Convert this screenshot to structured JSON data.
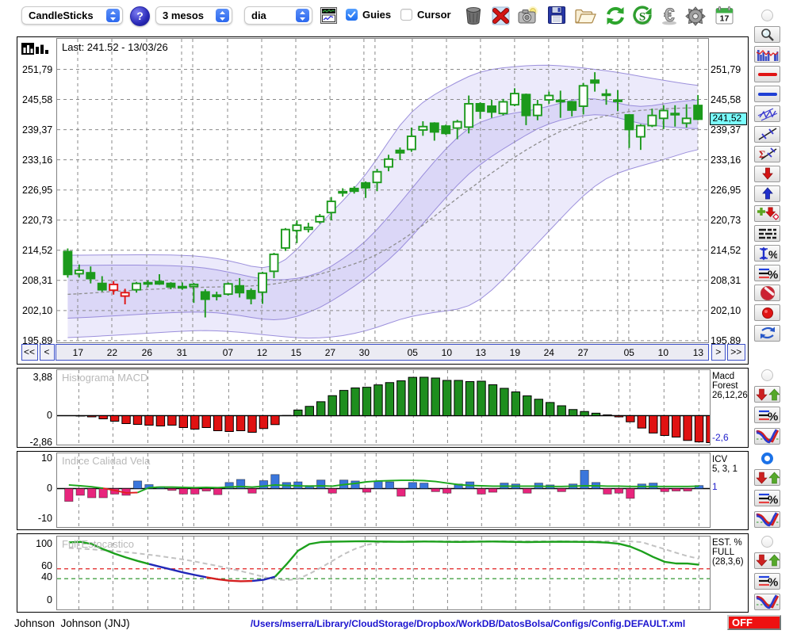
{
  "toolbar": {
    "chart_type_dropdown": {
      "value": "CandleSticks"
    },
    "help_button_label": "?",
    "period_dropdown": {
      "value": "3 mesos"
    },
    "interval_dropdown": {
      "value": "dia"
    },
    "chart_window_icon": "chart-window",
    "guies_checkbox": {
      "label": "Guies",
      "checked": true
    },
    "cursor_checkbox": {
      "label": "Cursor",
      "checked": false
    },
    "action_icons": [
      {
        "name": "trash"
      },
      {
        "name": "delete-cross"
      },
      {
        "name": "camera"
      },
      {
        "name": "save-floppy"
      },
      {
        "name": "open-folder"
      },
      {
        "name": "refresh-arrows"
      },
      {
        "name": "sync-s"
      },
      {
        "name": "euro"
      },
      {
        "name": "gear"
      },
      {
        "name": "calendar",
        "day": "17"
      }
    ]
  },
  "main_chart": {
    "corner_icon": "histogram",
    "last_label": "Last: 241.52 - 13/03/26",
    "price_labels": [
      "251,79",
      "245,58",
      "239,37",
      "233,16",
      "226,95",
      "220,73",
      "214,52",
      "208,31",
      "202,10",
      "195,89"
    ],
    "current_price_tag": "241,52",
    "radio_selected": false,
    "sidebar_icons": [
      "zoom-magnifier",
      "volume-profile",
      "red-hline",
      "blue-hline",
      "channel-zigzag",
      "trendline-marks",
      "sigma-line",
      "arrow-down-red",
      "arrow-up-blue",
      "plus-arrow-diamond",
      "lines-list",
      "vertical-percent",
      "lines-percent",
      "no-entry",
      "record-dot",
      "swap-arrows"
    ],
    "nav": {
      "first": "<<",
      "prev": "<",
      "next": ">",
      "last": ">>",
      "dates": [
        "17",
        "22",
        "26",
        "31",
        "07",
        "12",
        "15",
        "27",
        "30",
        "05",
        "10",
        "13",
        "19",
        "24",
        "27",
        "05",
        "10",
        "13"
      ]
    }
  },
  "panels": [
    {
      "id": "macd",
      "title": "Histograma MACD",
      "y_labels": [
        "3,88",
        "0",
        "-2,86"
      ],
      "right_lines": [
        "Macd",
        "Forest",
        "26,12,26"
      ],
      "right_value": "-2,6",
      "radio_selected": false,
      "sidebar_icons": [
        "arrows-red-green",
        "lines-percent",
        "curves-v"
      ]
    },
    {
      "id": "icv",
      "title": "Indice Calidad Vela",
      "y_labels": [
        "10",
        "0",
        "-10"
      ],
      "right_lines": [
        "ICV",
        "5, 3, 1"
      ],
      "right_value": "1",
      "radio_selected": true,
      "sidebar_icons": [
        "arrows-red-green",
        "lines-percent",
        "curves-v"
      ]
    },
    {
      "id": "est",
      "title": "Full Estocastico",
      "y_labels": [
        "100",
        "60",
        "40",
        "0"
      ],
      "right_lines": [
        "EST. %",
        "FULL",
        "(28,3,6)"
      ],
      "right_value": "",
      "radio_selected": false,
      "sidebar_icons": [
        "arrows-red-green",
        "lines-percent",
        "curves-v"
      ]
    }
  ],
  "status_bar": {
    "symbol_name": "Johnson  Johnson (JNJ)",
    "config_path": "/Users/mserra/Library/CloudStorage/Dropbox/WorkDB/DatosBolsa/Configs/Config.DEFAULT.xml",
    "off_button": "OFF"
  },
  "colors": {
    "candle_green": "#1c9a1c",
    "candle_red": "#e01313",
    "band_fill": "rgba(110,94,222,0.135)",
    "band_edge": "rgba(140,126,214,0.85)",
    "ma_line": "#8f8f8f",
    "grid": "#8a8a8a",
    "macd_green": "#1e8e1e",
    "macd_red": "#e01212",
    "icv_blue": "#3a76dc",
    "icv_pink": "#e8257d",
    "icv_line_green": "#1ca81c",
    "icv_line_red": "#e02020",
    "est_green": "#1ca01c",
    "est_gray": "#c2c2c2",
    "est_blue": "#2228b8",
    "est_red": "#d42020",
    "est_thr_red": "#e02020",
    "est_thr_green": "#1e8e1e",
    "nav_border": "#3c50c8",
    "tag_cyan": "#79fdfd",
    "off_red": "#ee1111",
    "path_blue": "#1b13cf",
    "accent_blue": "#2c68ee"
  },
  "chart_data": {
    "type": "candlestick-with-indicators",
    "title": "Johnson Johnson (JNJ) - CandleSticks - 3 mesos - dia",
    "last_close": 241.52,
    "last_date": "13/03/26",
    "price_axis": [
      251.79,
      245.58,
      239.37,
      233.16,
      226.95,
      220.73,
      214.52,
      208.31,
      202.1,
      195.89
    ],
    "price_range_visible": [
      195.5,
      258.1
    ],
    "x_tick_labels": [
      "17",
      "22",
      "26",
      "31",
      "07",
      "12",
      "15",
      "27",
      "30",
      "05",
      "10",
      "13",
      "19",
      "24",
      "27",
      "05",
      "10",
      "13"
    ],
    "x_tick_t": [
      1.87,
      4.85,
      7.89,
      10.94,
      14.95,
      17.93,
      20.9,
      23.88,
      26.85,
      31.07,
      34.05,
      37.02,
      40.0,
      42.97,
      45.95,
      49.96,
      52.94,
      55.99
    ],
    "x_extra_grid_t": [
      11.91,
      27.82,
      48.99
    ],
    "candles_ohlc": [
      [
        214.25,
        214.9,
        208.9,
        209.55
      ],
      [
        209.7,
        211.6,
        208.9,
        210.4
      ],
      [
        209.9,
        211.2,
        207.7,
        208.7
      ],
      [
        207.7,
        209.2,
        206.0,
        206.4
      ],
      [
        206.3,
        208.2,
        205.4,
        207.5
      ],
      [
        205.1,
        206.6,
        203.4,
        205.8
      ],
      [
        206.4,
        208.0,
        205.8,
        207.7
      ],
      [
        207.75,
        208.35,
        206.9,
        207.85
      ],
      [
        208.1,
        209.6,
        207.4,
        207.6
      ],
      [
        207.7,
        207.95,
        206.5,
        207.0
      ],
      [
        206.95,
        207.9,
        206.4,
        207.05
      ],
      [
        207.1,
        207.8,
        203.7,
        207.5
      ],
      [
        205.95,
        206.5,
        200.7,
        204.45
      ],
      [
        205.1,
        206.0,
        204.2,
        205.3
      ],
      [
        205.5,
        207.9,
        205.2,
        207.6
      ],
      [
        207.2,
        208.8,
        204.8,
        205.8
      ],
      [
        206.2,
        206.7,
        203.4,
        204.6
      ],
      [
        205.9,
        210.1,
        203.5,
        209.8
      ],
      [
        210.2,
        214.0,
        208.8,
        213.7
      ],
      [
        215.0,
        219.1,
        214.4,
        218.8
      ],
      [
        218.6,
        220.7,
        216.0,
        219.7
      ],
      [
        218.85,
        220.2,
        218.2,
        219.25
      ],
      [
        220.4,
        222.0,
        220.0,
        221.5
      ],
      [
        222.3,
        225.5,
        220.7,
        224.6
      ],
      [
        226.35,
        227.3,
        225.6,
        226.6
      ],
      [
        227.25,
        227.7,
        226.2,
        226.7
      ],
      [
        228.4,
        228.7,
        225.3,
        227.4
      ],
      [
        228.5,
        231.3,
        226.7,
        230.7
      ],
      [
        231.7,
        234.2,
        230.8,
        233.3
      ],
      [
        235.1,
        235.7,
        233.1,
        234.6
      ],
      [
        235.3,
        239.8,
        234.8,
        238.0
      ],
      [
        239.3,
        241.1,
        238.1,
        240.0
      ],
      [
        240.7,
        240.9,
        237.1,
        238.9
      ],
      [
        240.1,
        240.4,
        238.3,
        238.6
      ],
      [
        239.7,
        241.4,
        237.4,
        241.0
      ],
      [
        239.9,
        246.4,
        238.6,
        244.7
      ],
      [
        244.7,
        245.0,
        241.6,
        243.2
      ],
      [
        244.2,
        245.5,
        241.8,
        243.0
      ],
      [
        242.7,
        245.7,
        242.3,
        245.1
      ],
      [
        244.5,
        247.9,
        244.2,
        246.8
      ],
      [
        246.6,
        246.8,
        240.3,
        242.3
      ],
      [
        242.3,
        245.5,
        241.3,
        244.5
      ],
      [
        245.5,
        247.2,
        244.7,
        246.4
      ],
      [
        245.2,
        247.4,
        241.8,
        245.4
      ],
      [
        245.1,
        245.3,
        242.1,
        243.4
      ],
      [
        244.2,
        249.0,
        242.5,
        248.4
      ],
      [
        249.55,
        251.2,
        247.2,
        249.0
      ],
      [
        246.5,
        247.7,
        244.5,
        246.7
      ],
      [
        245.2,
        247.5,
        243.2,
        245.45
      ],
      [
        242.4,
        242.6,
        235.6,
        239.4
      ],
      [
        237.9,
        240.5,
        235.2,
        240.2
      ],
      [
        240.2,
        243.7,
        239.9,
        242.3
      ],
      [
        241.7,
        244.4,
        239.5,
        243.3
      ],
      [
        242.5,
        244.4,
        240.0,
        242.7
      ],
      [
        240.7,
        244.6,
        239.8,
        241.7
      ],
      [
        244.35,
        246.5,
        241.3,
        241.52
      ]
    ],
    "red_candles": [
      5,
      6
    ],
    "bollinger": {
      "ma": [
        205.46,
        205.57,
        205.72,
        205.88,
        206.04,
        206.19,
        206.32,
        206.45,
        206.57,
        206.68,
        206.77,
        206.85,
        206.92,
        206.98,
        207.03,
        207.08,
        207.18,
        207.35,
        207.6,
        207.95,
        208.43,
        209.01,
        209.63,
        210.27,
        210.96,
        211.72,
        212.61,
        213.69,
        214.96,
        216.41,
        217.99,
        219.7,
        221.52,
        223.39,
        225.23,
        227.02,
        228.75,
        230.45,
        232.09,
        233.67,
        235.18,
        236.57,
        237.86,
        239.02,
        240.03,
        240.89,
        241.64,
        242.23,
        242.7,
        243.08,
        243.34,
        243.52,
        243.66,
        243.76,
        243.83,
        243.87
      ],
      "a_hi": [
        213.51,
        213.52,
        213.54,
        213.56,
        213.58,
        213.59,
        213.6,
        213.6,
        213.59,
        213.56,
        213.49,
        213.37,
        213.16,
        212.83,
        212.39,
        211.85,
        211.25,
        210.96,
        211.36,
        212.62,
        214.7,
        217.25,
        219.84,
        222.3,
        224.72,
        227.28,
        230.15,
        233.4,
        236.93,
        240.25,
        242.92,
        244.96,
        246.57,
        247.93,
        249.18,
        250.32,
        251.22,
        251.78,
        252.11,
        252.35,
        252.52,
        252.63,
        252.65,
        252.53,
        252.32,
        252.07,
        251.79,
        251.49,
        251.15,
        250.76,
        250.34,
        249.93,
        249.55,
        249.16,
        248.78,
        248.48
      ],
      "a_lo": [
        200.55,
        200.64,
        200.75,
        200.88,
        201.01,
        201.15,
        201.3,
        201.44,
        201.57,
        201.67,
        201.75,
        201.8,
        201.77,
        201.64,
        201.41,
        201.1,
        200.71,
        200.37,
        200.22,
        200.38,
        200.92,
        201.73,
        202.77,
        204.06,
        205.53,
        207.1,
        208.79,
        210.61,
        212.59,
        214.81,
        217.32,
        220.0,
        222.73,
        225.39,
        227.91,
        230.19,
        232.15,
        233.85,
        235.38,
        236.83,
        238.25,
        239.53,
        240.55,
        241.31,
        241.85,
        242.23,
        242.44,
        242.34,
        241.84,
        241.19,
        240.66,
        240.29,
        240.02,
        239.82,
        239.67,
        239.56
      ],
      "b_hi": [
        211.41,
        211.42,
        211.44,
        211.46,
        211.48,
        211.48,
        211.47,
        211.45,
        211.42,
        211.36,
        211.25,
        211.1,
        210.86,
        210.5,
        210.05,
        209.55,
        209.04,
        208.63,
        208.44,
        208.49,
        208.75,
        209.21,
        210.0,
        211.23,
        212.77,
        214.47,
        216.45,
        218.83,
        221.49,
        224.28,
        227.15,
        230.02,
        232.8,
        235.37,
        237.71,
        239.61,
        240.88,
        241.72,
        242.34,
        242.8,
        243.19,
        243.64,
        244.2,
        244.84,
        245.43,
        245.76,
        245.69,
        245.32,
        244.83,
        244.36,
        244.15,
        244.32,
        244.69,
        245.04,
        245.31,
        245.49
      ],
      "b_lo": [
        196.55,
        196.64,
        196.75,
        196.88,
        197.01,
        197.15,
        197.3,
        197.45,
        197.59,
        197.72,
        197.85,
        197.95,
        198.0,
        197.94,
        197.82,
        197.65,
        197.42,
        197.17,
        196.93,
        196.71,
        196.53,
        196.45,
        196.5,
        196.67,
        196.96,
        197.41,
        197.97,
        198.67,
        199.49,
        200.27,
        200.88,
        201.34,
        201.72,
        202.03,
        202.4,
        203.12,
        204.45,
        206.32,
        208.57,
        211.01,
        213.5,
        216.0,
        218.5,
        220.99,
        223.44,
        225.73,
        227.7,
        229.27,
        230.39,
        231.21,
        231.89,
        232.54,
        233.22,
        233.95,
        234.69,
        235.26
      ]
    },
    "macd_histogram": {
      "name": "Macd Forest 26,12,26",
      "ylim": [
        -2.86,
        3.88
      ],
      "last_value": -2.6,
      "extra_last": -2.72,
      "values": [
        0,
        -0.04,
        -0.12,
        -0.32,
        -0.56,
        -0.8,
        -0.88,
        -0.96,
        -1.04,
        -0.96,
        -1.2,
        -1.36,
        -1.2,
        -1.52,
        -1.6,
        -1.52,
        -1.68,
        -1.3,
        -0.9,
        0.02,
        0.57,
        0.94,
        1.41,
        2.02,
        2.55,
        2.8,
        2.87,
        3.11,
        3.34,
        3.52,
        3.87,
        3.88,
        3.8,
        3.56,
        3.56,
        3.44,
        3.48,
        3.12,
        2.76,
        2.4,
        2.0,
        1.66,
        1.33,
        1.0,
        0.62,
        0.42,
        0.25,
        0.08,
        -0.12,
        -0.62,
        -1.25,
        -1.75,
        -2.0,
        -2.16,
        -2.5,
        -2.65
      ]
    },
    "icv": {
      "name": "ICV 5, 3, 1",
      "ylim": [
        -10,
        10
      ],
      "last_value": 1,
      "bars": [
        -4.2,
        -2.2,
        -3.0,
        -3.0,
        -1.8,
        -2.2,
        2.5,
        1.3,
        0.6,
        -0.6,
        -1.8,
        -1.8,
        -0.8,
        -2.0,
        2.0,
        3.0,
        -1.5,
        2.6,
        4.6,
        2.0,
        2.2,
        1.0,
        2.8,
        -1.5,
        2.8,
        2.5,
        -1.2,
        2.5,
        2.2,
        -2.5,
        2.0,
        1.8,
        -1.0,
        -1.5,
        1.5,
        2.2,
        -1.8,
        -1.2,
        1.8,
        1.5,
        -1.5,
        1.8,
        1.2,
        -1.0,
        1.5,
        6.0,
        2.0,
        -1.8,
        -1.5,
        -3.2,
        1.5,
        1.8,
        -1.0,
        -0.8,
        -0.8,
        1.0
      ],
      "line": [
        1.2,
        0.9,
        0.6,
        0.1,
        -0.6,
        -1.4,
        -1.3,
        0.3,
        0.5,
        0.5,
        0.4,
        0.3,
        0.4,
        0.3,
        0.5,
        0.7,
        0.5,
        0.8,
        1.2,
        1.0,
        0.9,
        0.8,
        0.9,
        0.8,
        1.3,
        1.7,
        2.2,
        2.5,
        2.6,
        2.7,
        2.7,
        2.6,
        2.3,
        1.8,
        1.3,
        1.0,
        0.9,
        0.8,
        0.8,
        0.8,
        0.8,
        0.8,
        0.7,
        0.7,
        0.8,
        0.9,
        0.9,
        0.8,
        0.8,
        0.7,
        0.7,
        0.7,
        0.7,
        0.7,
        0.7,
        0.8
      ],
      "line_red_span": [
        4,
        7
      ]
    },
    "stochastic": {
      "name": "EST. % FULL (28,3,6)",
      "ylim": [
        0,
        100
      ],
      "threshold_upper": 56,
      "threshold_lower": 38.5,
      "k": [
        103,
        104,
        100,
        91,
        83,
        76,
        70,
        64.5,
        59.5,
        54.5,
        49.5,
        45,
        41,
        37.5,
        35,
        34,
        34.3,
        36.5,
        42,
        64,
        88,
        100,
        103.5,
        104.2,
        104.5,
        104.8,
        105,
        104.5,
        104.2,
        104,
        104.2,
        104.5,
        104.3,
        104,
        103.8,
        104,
        104.3,
        104.5,
        104.2,
        103.8,
        103.5,
        103.8,
        104,
        104.2,
        104,
        103.8,
        103.5,
        102.5,
        100.5,
        95.5,
        87,
        77,
        68.5,
        65.5,
        65.3,
        63.2
      ],
      "k_segments": [
        {
          "to": 8,
          "color": "green"
        },
        {
          "to": 13,
          "color": "blue"
        },
        {
          "to": 17,
          "color": "red"
        },
        {
          "to": 19,
          "color": "blue"
        },
        {
          "to": 56,
          "color": "green"
        }
      ],
      "d": [
        93,
        92,
        90.5,
        89,
        87.5,
        85.5,
        83.5,
        81,
        78.5,
        75.5,
        72.5,
        69,
        65,
        61,
        56.5,
        52,
        47,
        41.5,
        36.8,
        35.8,
        38,
        47,
        58,
        70,
        82,
        91.5,
        98.5,
        102.5,
        104,
        104.6,
        104.8,
        105,
        105,
        105,
        105,
        105,
        105,
        105,
        105,
        105,
        105,
        105,
        105,
        105,
        105,
        105,
        105,
        105,
        105,
        104.8,
        103.5,
        97,
        91,
        84.5,
        78.5,
        74
      ]
    }
  }
}
